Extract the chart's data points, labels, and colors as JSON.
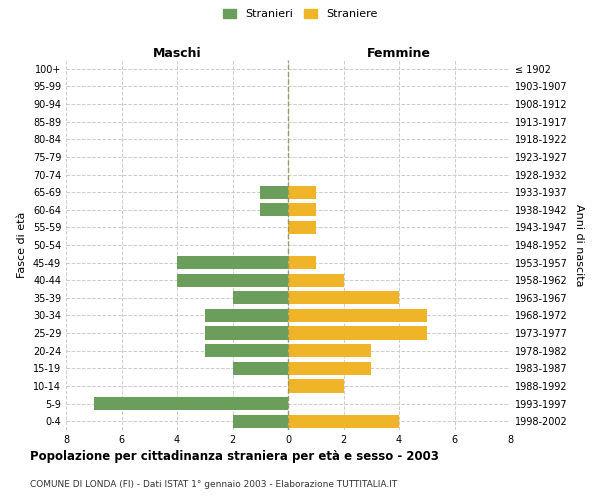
{
  "age_groups": [
    "0-4",
    "5-9",
    "10-14",
    "15-19",
    "20-24",
    "25-29",
    "30-34",
    "35-39",
    "40-44",
    "45-49",
    "50-54",
    "55-59",
    "60-64",
    "65-69",
    "70-74",
    "75-79",
    "80-84",
    "85-89",
    "90-94",
    "95-99",
    "100+"
  ],
  "birth_years": [
    "1998-2002",
    "1993-1997",
    "1988-1992",
    "1983-1987",
    "1978-1982",
    "1973-1977",
    "1968-1972",
    "1963-1967",
    "1958-1962",
    "1953-1957",
    "1948-1952",
    "1943-1947",
    "1938-1942",
    "1933-1937",
    "1928-1932",
    "1923-1927",
    "1918-1922",
    "1913-1917",
    "1908-1912",
    "1903-1907",
    "≤ 1902"
  ],
  "maschi": [
    2,
    7,
    0,
    2,
    3,
    3,
    3,
    2,
    4,
    4,
    0,
    0,
    1,
    1,
    0,
    0,
    0,
    0,
    0,
    0,
    0
  ],
  "femmine": [
    4,
    0,
    2,
    3,
    3,
    5,
    5,
    4,
    2,
    1,
    0,
    1,
    1,
    1,
    0,
    0,
    0,
    0,
    0,
    0,
    0
  ],
  "maschi_color": "#6a9e5a",
  "femmine_color": "#f0b429",
  "title": "Popolazione per cittadinanza straniera per età e sesso - 2003",
  "subtitle": "COMUNE DI LONDA (FI) - Dati ISTAT 1° gennaio 2003 - Elaborazione TUTTITALIA.IT",
  "legend_maschi": "Stranieri",
  "legend_femmine": "Straniere",
  "xlabel_left": "Maschi",
  "xlabel_right": "Femmine",
  "ylabel_left": "Fasce di età",
  "ylabel_right": "Anni di nascita",
  "xlim": 8,
  "bg_color": "#ffffff",
  "grid_color": "#cccccc"
}
